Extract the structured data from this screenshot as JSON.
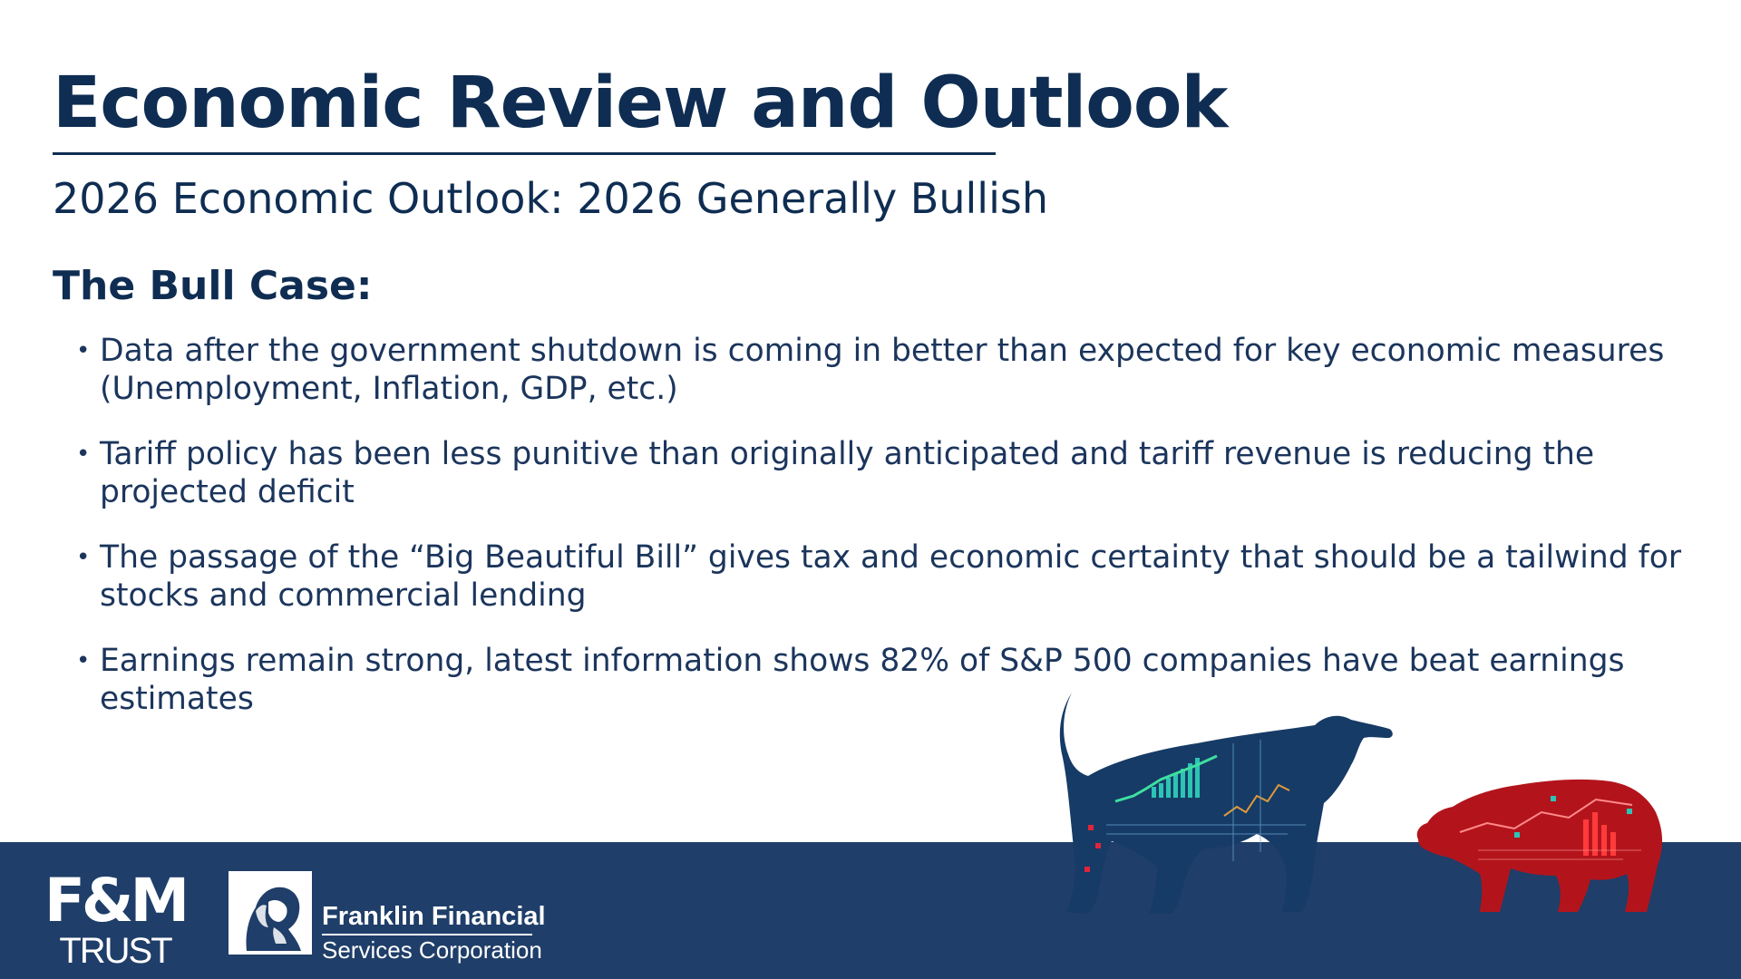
{
  "slide": {
    "title": "Economic Review and Outlook",
    "subtitle": "2026 Economic Outlook: 2026 Generally Bullish",
    "section_heading": "The Bull Case:",
    "bullet_symbol": "•",
    "bullets": [
      "Data after the government shutdown is coming in better than expected for key economic measures (Unemployment, Inflation, GDP, etc.)",
      "Tariff policy has been less punitive than originally anticipated and tariff revenue is reducing the projected deficit",
      "The passage of the “Big Beautiful Bill” gives tax and economic certainty that should be a tailwind for stocks and commercial lending",
      "Earnings remain strong, latest information shows 82% of S&P 500 companies have beat earnings estimates"
    ]
  },
  "footer": {
    "fm_logo_text": [
      "F&M",
      "TRUST"
    ],
    "ff_name": "Franklin Financial",
    "ff_sub": "Services Corporation"
  },
  "illustration": {
    "bull_icon": "bull-market-icon",
    "bear_icon": "bear-market-icon"
  },
  "colors": {
    "title": "#0f2d52",
    "body_text": "#1b355c",
    "footer_band": "#1f3e69",
    "bull_fill": "#163b66",
    "bull_chart": "#2cc4b4",
    "bear_fill": "#b3141c"
  }
}
